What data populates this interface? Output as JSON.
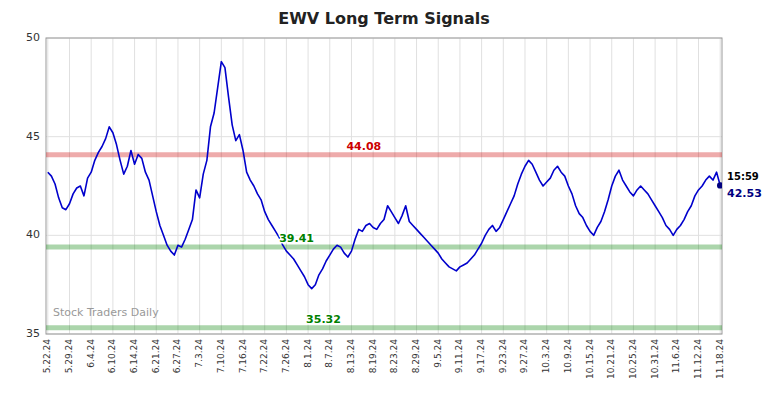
{
  "chart_data": {
    "type": "line",
    "title": "EWV Long Term Signals",
    "categories": [
      "5.22.24",
      null,
      null,
      null,
      null,
      null,
      "5.29.24",
      null,
      null,
      null,
      null,
      null,
      "6.4.24",
      null,
      null,
      null,
      null,
      null,
      "6.10.24",
      null,
      null,
      null,
      null,
      null,
      "6.14.24",
      null,
      null,
      null,
      null,
      null,
      "6.21.24",
      null,
      null,
      null,
      null,
      null,
      "6.27.24",
      null,
      null,
      null,
      null,
      null,
      "7.3.24",
      null,
      null,
      null,
      null,
      null,
      "7.10.24",
      null,
      null,
      null,
      null,
      null,
      "7.16.24",
      null,
      null,
      null,
      null,
      null,
      "7.22.24",
      null,
      null,
      null,
      null,
      null,
      "7.26.24",
      null,
      null,
      null,
      null,
      null,
      "8.1.24",
      null,
      null,
      null,
      null,
      null,
      "8.7.24",
      null,
      null,
      null,
      null,
      null,
      "8.13.24",
      null,
      null,
      null,
      null,
      null,
      "8.19.24",
      null,
      null,
      null,
      null,
      null,
      "8.23.24",
      null,
      null,
      null,
      null,
      null,
      "8.29.24",
      null,
      null,
      null,
      null,
      null,
      "9.5.24",
      null,
      null,
      null,
      null,
      null,
      "9.11.24",
      null,
      null,
      null,
      null,
      null,
      "9.17.24",
      null,
      null,
      null,
      null,
      null,
      "9.23.24",
      null,
      null,
      null,
      null,
      null,
      "9.27.24",
      null,
      null,
      null,
      null,
      null,
      "10.3.24",
      null,
      null,
      null,
      null,
      null,
      "10.9.24",
      null,
      null,
      null,
      null,
      null,
      "10.15.24",
      null,
      null,
      null,
      null,
      null,
      "10.21.24",
      null,
      null,
      null,
      null,
      null,
      "10.25.24",
      null,
      null,
      null,
      null,
      null,
      "10.31.24",
      null,
      null,
      null,
      null,
      null,
      "11.6.24",
      null,
      null,
      null,
      null,
      null,
      "11.12.24",
      null,
      null,
      null,
      null,
      null,
      "11.18.24"
    ],
    "series": [
      {
        "color": "#0000cc",
        "values": [
          43.2,
          43.0,
          42.6,
          41.9,
          41.4,
          41.3,
          41.6,
          42.1,
          42.4,
          42.5,
          42.0,
          42.9,
          43.2,
          43.8,
          44.2,
          44.5,
          44.9,
          45.5,
          45.2,
          44.6,
          43.8,
          43.1,
          43.5,
          44.3,
          43.6,
          44.1,
          43.9,
          43.2,
          42.8,
          42.0,
          41.2,
          40.5,
          40.0,
          39.5,
          39.2,
          39.0,
          39.5,
          39.4,
          39.8,
          40.3,
          40.8,
          42.3,
          41.9,
          43.1,
          43.8,
          45.5,
          46.2,
          47.5,
          48.8,
          48.5,
          47.0,
          45.6,
          44.8,
          45.1,
          44.3,
          43.2,
          42.8,
          42.5,
          42.1,
          41.8,
          41.2,
          40.8,
          40.5,
          40.2,
          39.9,
          39.5,
          39.2,
          39.0,
          38.8,
          38.5,
          38.2,
          37.9,
          37.5,
          37.3,
          37.5,
          38.0,
          38.3,
          38.7,
          39.0,
          39.3,
          39.5,
          39.4,
          39.1,
          38.9,
          39.2,
          39.8,
          40.3,
          40.2,
          40.5,
          40.6,
          40.4,
          40.3,
          40.6,
          40.8,
          41.5,
          41.2,
          40.9,
          40.6,
          41.0,
          41.5,
          40.7,
          40.5,
          40.3,
          40.1,
          39.9,
          39.7,
          39.5,
          39.3,
          39.1,
          38.8,
          38.6,
          38.4,
          38.3,
          38.2,
          38.4,
          38.5,
          38.6,
          38.8,
          39.0,
          39.3,
          39.6,
          40.0,
          40.3,
          40.5,
          40.2,
          40.4,
          40.8,
          41.2,
          41.6,
          42.0,
          42.6,
          43.1,
          43.5,
          43.8,
          43.6,
          43.2,
          42.8,
          42.5,
          42.7,
          42.9,
          43.3,
          43.5,
          43.2,
          43.0,
          42.5,
          42.1,
          41.5,
          41.1,
          40.9,
          40.5,
          40.2,
          40.0,
          40.4,
          40.7,
          41.2,
          41.8,
          42.5,
          43.0,
          43.3,
          42.8,
          42.5,
          42.2,
          42.0,
          42.3,
          42.5,
          42.3,
          42.1,
          41.8,
          41.5,
          41.2,
          40.9,
          40.5,
          40.3,
          40.0,
          40.3,
          40.5,
          40.8,
          41.2,
          41.5,
          42.0,
          42.3,
          42.5,
          42.8,
          43.0,
          42.8,
          43.2,
          42.53
        ]
      }
    ],
    "reference_lines": [
      {
        "value": 44.08,
        "color": "#cc0000"
      },
      {
        "value": 39.41,
        "color": "#008000"
      },
      {
        "value": 35.32,
        "color": "#008000"
      }
    ],
    "current_time": "15:59",
    "current_price": 42.53,
    "watermark": "Stock Traders Daily",
    "ylim": [
      35,
      50
    ],
    "yticks": [
      35,
      40,
      45,
      50
    ],
    "grid": true
  }
}
